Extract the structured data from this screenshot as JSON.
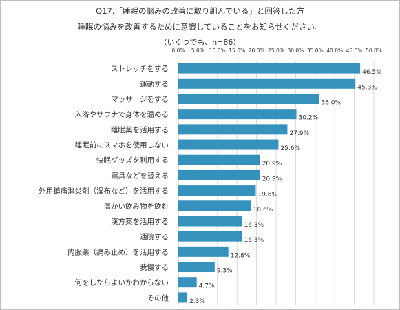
{
  "title": {
    "line1": "Q17.「睡眠の悩みの改善に取り組んでいる」と回答した方",
    "line2": "睡眠の悩みを改善するために意識していることをお知らせください。",
    "line3": "（いくつでも、n=86）"
  },
  "colors": {
    "bar": "#3592bc",
    "grid": "#d9d9d9",
    "text": "#333333"
  },
  "chart_data": {
    "type": "bar",
    "orientation": "horizontal",
    "xlim": [
      0,
      50
    ],
    "x_ticks": [
      "0.0%",
      "5.0%",
      "10.0%",
      "15.0%",
      "20.0%",
      "25.0%",
      "30.0%",
      "35.0%",
      "40.0%",
      "45.0%",
      "50.0%"
    ],
    "categories": [
      "ストレッチをする",
      "運動する",
      "マッサージをする",
      "入浴やサウナで身体を温める",
      "睡眠薬を活用する",
      "睡眠前にスマホを使用しない",
      "快眠グッズを利用する",
      "寝具などを替える",
      "外用鎮痛消炎剤（湿布など）を活用する",
      "温かい飲み物を飲む",
      "漢方薬を活用する",
      "通院する",
      "内服薬（痛み止め）を活用する",
      "我慢する",
      "何をしたらよいかわからない",
      "その他"
    ],
    "values": [
      46.5,
      45.3,
      36.0,
      30.2,
      27.9,
      25.6,
      20.9,
      20.9,
      19.8,
      18.6,
      16.3,
      16.3,
      12.8,
      9.3,
      4.7,
      2.3
    ],
    "value_labels": [
      "46.5%",
      "45.3%",
      "36.0%",
      "30.2%",
      "27.9%",
      "25.6%",
      "20.9%",
      "20.9%",
      "19.8%",
      "18.6%",
      "16.3%",
      "16.3%",
      "12.8%",
      "9.3%",
      "4.7%",
      "2.3%"
    ],
    "grid": true,
    "legend": "none"
  }
}
